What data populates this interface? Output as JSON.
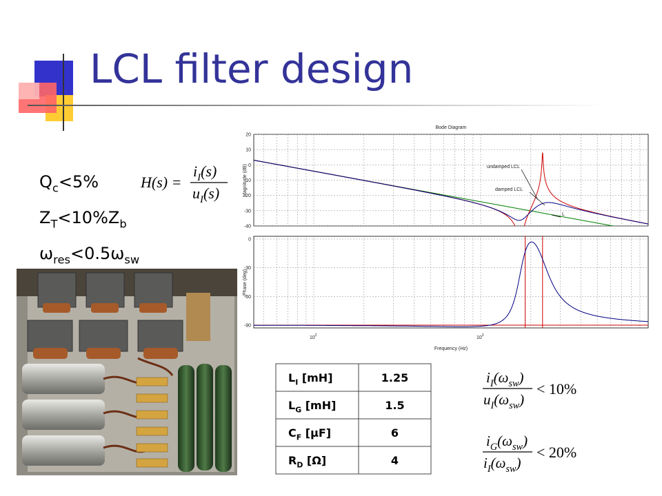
{
  "title": "LCL filter design",
  "bullets": [
    {
      "parts": [
        {
          "text": "Q"
        },
        {
          "text": "c",
          "style": "sub"
        },
        {
          "text": "<5%"
        }
      ]
    },
    {
      "parts": [
        {
          "text": "Z"
        },
        {
          "text": "T",
          "style": "sub"
        },
        {
          "text": "<10%Z"
        },
        {
          "text": "b",
          "style": "sub"
        }
      ]
    },
    {
      "parts": [
        {
          "text": "ω"
        },
        {
          "text": "res",
          "style": "sub"
        },
        {
          "text": "<0.5ω"
        },
        {
          "text": "sw",
          "style": "sub"
        }
      ]
    }
  ],
  "transfer_function": {
    "lhs": "H(s) =",
    "numerator": [
      {
        "text": "i"
      },
      {
        "text": "I",
        "style": "sub"
      },
      {
        "text": "(s)"
      }
    ],
    "denominator": [
      {
        "text": "u"
      },
      {
        "text": "I",
        "style": "sub"
      },
      {
        "text": "(s)"
      }
    ]
  },
  "bode": {
    "title": "Bode Diagram",
    "magnitude_label": "Magnitude (dB)",
    "phase_label": "Phase (deg)",
    "frequency_label": "Frequency (Hz)",
    "magnitude_ticks": [
      "20",
      "10",
      "0",
      "-10",
      "-20",
      "-30",
      "-40"
    ],
    "phase_ticks": [
      "0",
      "-30",
      "-60",
      "-90"
    ],
    "frequency_ticks": [
      {
        "base": "10",
        "exponent": "2"
      },
      {
        "base": "10",
        "exponent": "3"
      }
    ],
    "annotations": [
      "undamped LCL",
      "damped LCL",
      "L"
    ]
  },
  "table": {
    "rows": [
      {
        "label": [
          {
            "text": "L"
          },
          {
            "text": "I",
            "style": "sub"
          },
          {
            "text": " [mH]"
          }
        ],
        "value": 1.25
      },
      {
        "label": [
          {
            "text": "L"
          },
          {
            "text": "G",
            "style": "sub"
          },
          {
            "text": " [mH]"
          }
        ],
        "value": 1.5
      },
      {
        "label": [
          {
            "text": "C"
          },
          {
            "text": "F",
            "style": "sub"
          },
          {
            "text": " [μF]"
          }
        ],
        "value": 6
      },
      {
        "label": [
          {
            "text": "R"
          },
          {
            "text": "D",
            "style": "sub"
          },
          {
            "text": " [Ω]"
          }
        ],
        "value": 4
      }
    ]
  },
  "constraints": [
    {
      "numerator": [
        {
          "text": "i"
        },
        {
          "text": "I",
          "style": "sub"
        },
        {
          "text": "(ω"
        },
        {
          "text": "sw",
          "style": "sub"
        },
        {
          "text": ")"
        }
      ],
      "denominator": [
        {
          "text": "u"
        },
        {
          "text": "I",
          "style": "sub"
        },
        {
          "text": "(ω"
        },
        {
          "text": "sw",
          "style": "sub"
        },
        {
          "text": ")"
        }
      ],
      "relation": "< 10%"
    },
    {
      "numerator": [
        {
          "text": "i"
        },
        {
          "text": "G",
          "style": "sub"
        },
        {
          "text": "(ω"
        },
        {
          "text": "sw",
          "style": "sub"
        },
        {
          "text": ")"
        }
      ],
      "denominator": [
        {
          "text": "i"
        },
        {
          "text": "I",
          "style": "sub"
        },
        {
          "text": "(ω"
        },
        {
          "text": "sw",
          "style": "sub"
        },
        {
          "text": ")"
        }
      ],
      "relation": "< 20%"
    }
  ]
}
